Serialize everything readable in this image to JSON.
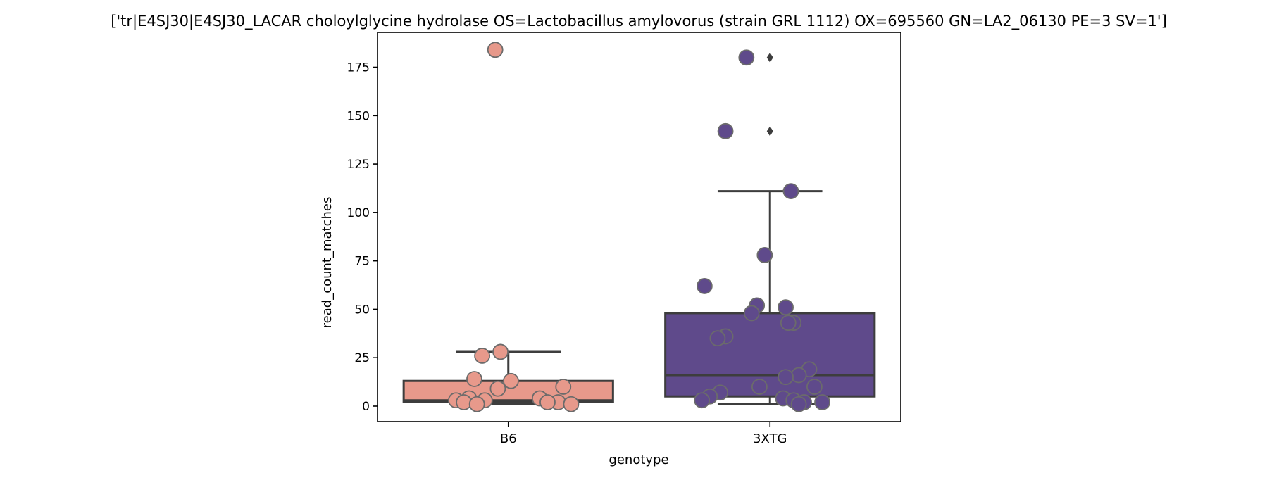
{
  "chart_data": {
    "type": "box",
    "title": "['tr|E4SJ30|E4SJ30_LACAR choloylglycine hydrolase OS=Lactobacillus amylovorus (strain GRL 1112) OX=695560 GN=LA2_06130 PE=3 SV=1']",
    "xlabel": "genotype",
    "ylabel": "read_count_matches",
    "categories": [
      "B6",
      "3XTG"
    ],
    "ylim": [
      -8,
      193
    ],
    "yticks": [
      0,
      25,
      50,
      75,
      100,
      125,
      150,
      175
    ],
    "grid": false,
    "legend": false,
    "series": [
      {
        "name": "B6",
        "color": "#e7998b",
        "box": {
          "whisker_low": 1,
          "q1": 2,
          "median": 3,
          "q3": 13,
          "whisker_high": 28
        },
        "fliers": [],
        "points": [
          {
            "y": 184,
            "jitter": -0.05
          },
          {
            "y": 28,
            "jitter": -0.03
          },
          {
            "y": 26,
            "jitter": -0.1
          },
          {
            "y": 14,
            "jitter": -0.13
          },
          {
            "y": 13,
            "jitter": 0.01
          },
          {
            "y": 10,
            "jitter": 0.21
          },
          {
            "y": 9,
            "jitter": -0.04
          },
          {
            "y": 4,
            "jitter": 0.12
          },
          {
            "y": 4,
            "jitter": -0.15
          },
          {
            "y": 3,
            "jitter": -0.09
          },
          {
            "y": 3,
            "jitter": -0.2
          },
          {
            "y": 2,
            "jitter": 0.19
          },
          {
            "y": 2,
            "jitter": -0.17
          },
          {
            "y": 2,
            "jitter": 0.15
          },
          {
            "y": 1,
            "jitter": -0.12
          },
          {
            "y": 1,
            "jitter": 0.24
          }
        ]
      },
      {
        "name": "3XTG",
        "color": "#5f4a8b",
        "box": {
          "whisker_low": 1,
          "q1": 5,
          "median": 16,
          "q3": 48,
          "whisker_high": 111
        },
        "fliers": [
          180,
          142
        ],
        "points": [
          {
            "y": 180,
            "jitter": -0.09
          },
          {
            "y": 142,
            "jitter": -0.17
          },
          {
            "y": 111,
            "jitter": 0.08
          },
          {
            "y": 78,
            "jitter": -0.02
          },
          {
            "y": 62,
            "jitter": -0.25
          },
          {
            "y": 52,
            "jitter": -0.05
          },
          {
            "y": 51,
            "jitter": 0.06
          },
          {
            "y": 48,
            "jitter": -0.07
          },
          {
            "y": 43,
            "jitter": 0.09
          },
          {
            "y": 43,
            "jitter": 0.07
          },
          {
            "y": 36,
            "jitter": -0.17
          },
          {
            "y": 35,
            "jitter": -0.2
          },
          {
            "y": 19,
            "jitter": 0.15
          },
          {
            "y": 16,
            "jitter": 0.11
          },
          {
            "y": 15,
            "jitter": 0.06
          },
          {
            "y": 10,
            "jitter": 0.17
          },
          {
            "y": 10,
            "jitter": -0.04
          },
          {
            "y": 7,
            "jitter": -0.19
          },
          {
            "y": 5,
            "jitter": -0.23
          },
          {
            "y": 4,
            "jitter": 0.05
          },
          {
            "y": 3,
            "jitter": -0.26
          },
          {
            "y": 3,
            "jitter": 0.09
          },
          {
            "y": 2,
            "jitter": 0.2
          },
          {
            "y": 2,
            "jitter": 0.13
          },
          {
            "y": 1,
            "jitter": 0.11
          }
        ]
      }
    ]
  }
}
